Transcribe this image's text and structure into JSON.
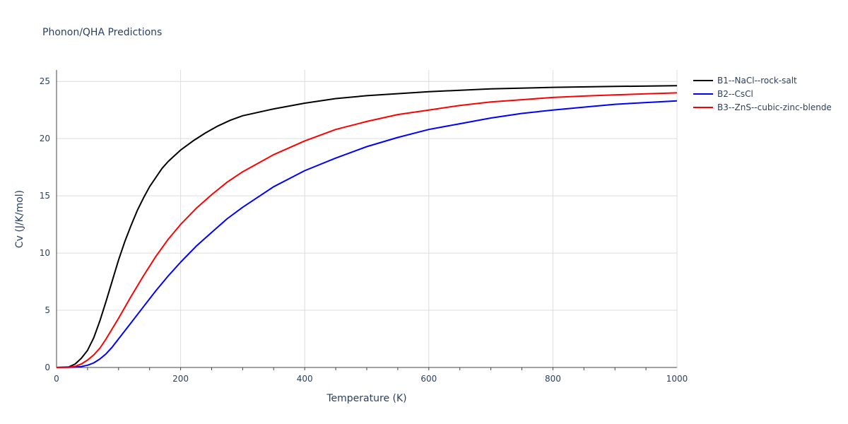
{
  "chart_data": {
    "type": "line",
    "title": "Phonon/QHA Predictions",
    "xlabel": "Temperature (K)",
    "ylabel": "Cv (J/K/mol)",
    "xlim": [
      0,
      1000
    ],
    "ylim": [
      0,
      26
    ],
    "xticks": [
      0,
      200,
      400,
      600,
      800,
      1000
    ],
    "yticks": [
      0,
      5,
      10,
      15,
      20,
      25
    ],
    "grid": true,
    "legend_position": "top-right",
    "series": [
      {
        "name": "B1--NaCl--rock-salt",
        "color": "#000000",
        "x": [
          0,
          20,
          30,
          40,
          50,
          60,
          70,
          80,
          90,
          100,
          110,
          120,
          130,
          140,
          150,
          160,
          170,
          180,
          190,
          200,
          220,
          240,
          260,
          280,
          300,
          350,
          400,
          450,
          500,
          600,
          700,
          800,
          900,
          1000
        ],
        "y": [
          0,
          0.05,
          0.3,
          0.8,
          1.5,
          2.6,
          4.1,
          5.8,
          7.6,
          9.4,
          11.0,
          12.4,
          13.7,
          14.8,
          15.8,
          16.6,
          17.4,
          18.0,
          18.5,
          19.0,
          19.8,
          20.5,
          21.1,
          21.6,
          22.0,
          22.6,
          23.1,
          23.5,
          23.75,
          24.1,
          24.35,
          24.48,
          24.56,
          24.63
        ]
      },
      {
        "name": "B2--CsCl",
        "color": "#0000ff",
        "x": [
          0,
          20,
          30,
          40,
          50,
          60,
          70,
          80,
          90,
          100,
          120,
          140,
          160,
          180,
          200,
          225,
          250,
          275,
          300,
          350,
          400,
          450,
          500,
          550,
          600,
          650,
          700,
          750,
          800,
          850,
          900,
          950,
          1000
        ],
        "y": [
          0,
          0.01,
          0.03,
          0.08,
          0.2,
          0.4,
          0.75,
          1.2,
          1.8,
          2.5,
          3.9,
          5.3,
          6.7,
          8.0,
          9.2,
          10.6,
          11.8,
          13.0,
          14.0,
          15.8,
          17.2,
          18.3,
          19.3,
          20.1,
          20.8,
          21.3,
          21.8,
          22.2,
          22.5,
          22.75,
          23.0,
          23.15,
          23.3
        ]
      },
      {
        "name": "B3--ZnS--cubic-zinc-blende",
        "color": "#ff0000",
        "x": [
          0,
          20,
          30,
          40,
          50,
          60,
          70,
          80,
          90,
          100,
          120,
          140,
          160,
          180,
          200,
          225,
          250,
          275,
          300,
          350,
          400,
          450,
          500,
          550,
          600,
          650,
          700,
          750,
          800,
          850,
          900,
          950,
          1000
        ],
        "y": [
          0,
          0.02,
          0.1,
          0.3,
          0.65,
          1.1,
          1.7,
          2.5,
          3.4,
          4.3,
          6.2,
          8.0,
          9.7,
          11.2,
          12.5,
          13.9,
          15.1,
          16.2,
          17.1,
          18.6,
          19.8,
          20.8,
          21.5,
          22.1,
          22.5,
          22.9,
          23.2,
          23.4,
          23.6,
          23.72,
          23.82,
          23.92,
          24.0
        ]
      }
    ]
  }
}
